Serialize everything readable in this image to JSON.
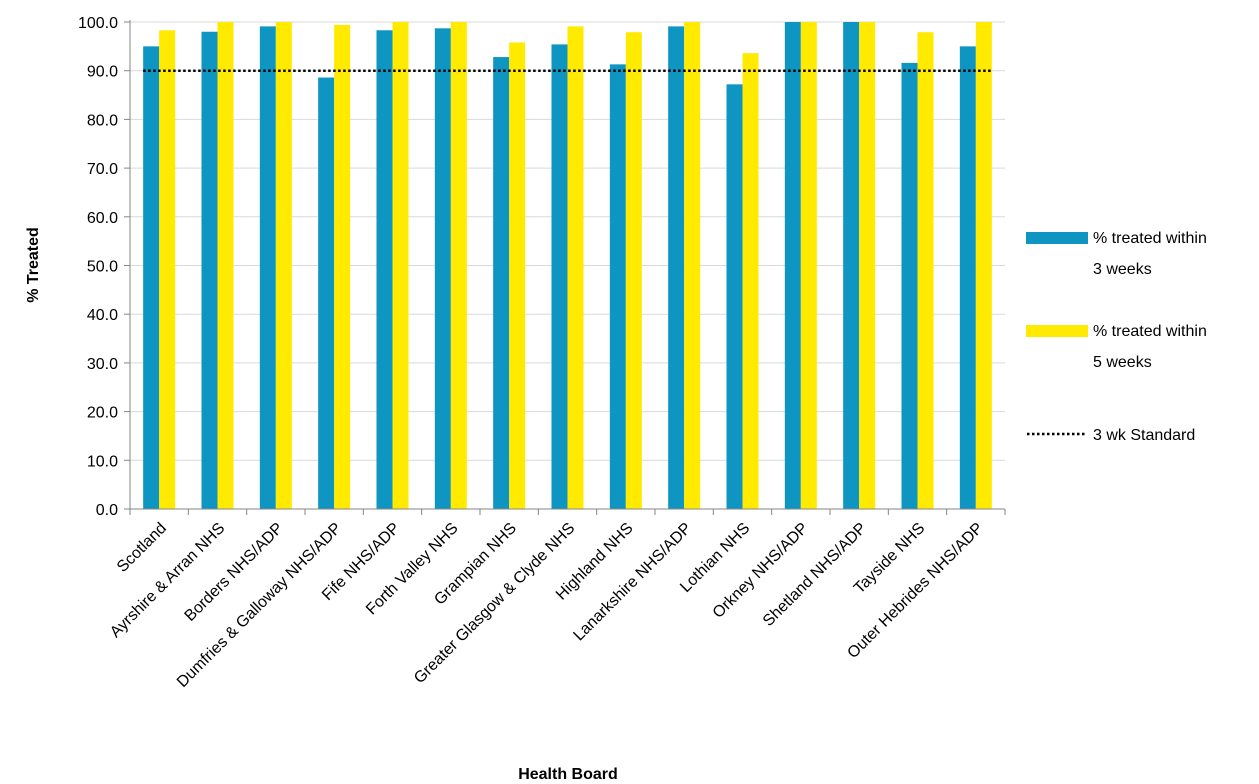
{
  "chart_data": {
    "type": "bar",
    "title": "",
    "xlabel": "Health Board",
    "ylabel": "% Treated",
    "ylim": [
      0,
      100
    ],
    "yticks": [
      "0.0",
      "10.0",
      "20.0",
      "30.0",
      "40.0",
      "50.0",
      "60.0",
      "70.0",
      "80.0",
      "90.0",
      "100.0"
    ],
    "grid": true,
    "legend_position": "right",
    "categories": [
      "Scotland",
      "Ayrshire & Arran NHS",
      "Borders NHS/ADP",
      "Dumfries & Galloway NHS/ADP",
      "Fife NHS/ADP",
      "Forth Valley NHS",
      "Grampian NHS",
      "Greater Glasgow & Clyde NHS",
      "Highland NHS",
      "Lanarkshire NHS/ADP",
      "Lothian NHS",
      "Orkney NHS/ADP",
      "Shetland NHS/ADP",
      "Tayside NHS",
      "Outer Hebrides NHS/ADP"
    ],
    "series": [
      {
        "name": "% treated within 3 weeks",
        "legend_lines": [
          "% treated within",
          "3 weeks"
        ],
        "color": "#0e95c1",
        "values": [
          95.0,
          98.0,
          99.1,
          88.6,
          98.3,
          98.7,
          92.8,
          95.4,
          91.3,
          99.1,
          87.2,
          100.0,
          100.0,
          91.6,
          95.0
        ]
      },
      {
        "name": "% treated within 5 weeks",
        "legend_lines": [
          "% treated within",
          "5 weeks"
        ],
        "color": "#ffea00",
        "values": [
          98.3,
          100.0,
          100.0,
          99.4,
          100.0,
          100.0,
          95.8,
          99.1,
          97.9,
          100.0,
          93.6,
          100.0,
          100.0,
          97.9,
          100.0
        ]
      }
    ],
    "reference_line": {
      "name": "3 wk Standard",
      "value": 90,
      "style": "dotted",
      "color": "#000000"
    }
  }
}
